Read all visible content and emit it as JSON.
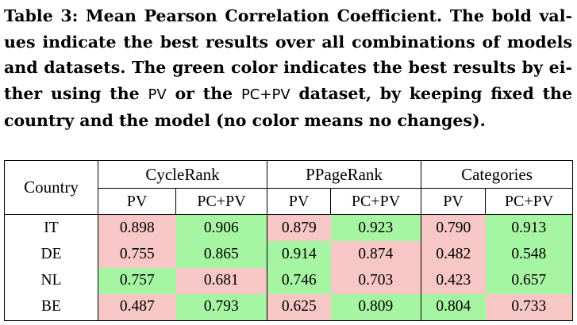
{
  "caption": {
    "line1": "Table 3: Mean Pearson Correlation Coefficient. The bold val-",
    "line2": "ues indicate the best results over all combinations of models",
    "line3": "and datasets. The green color indicates the best results by ei-",
    "line4_a": "ther using the ",
    "line4_pv": "PV",
    "line4_b": " or the ",
    "line4_pcpv": "PC+PV",
    "line4_c": " dataset, by keeping fixed the",
    "line5": "country and the model (no color means no changes)."
  },
  "table": {
    "country_header": "Country",
    "groups": [
      "CycleRank",
      "PPageRank",
      "Categories"
    ],
    "subcols": [
      "PV",
      "PC+PV",
      "PV",
      "PC+PV",
      "PV",
      "PC+PV"
    ],
    "rows": [
      {
        "country": "IT",
        "cells": [
          "0.898",
          "0.906",
          "0.879",
          "0.923",
          "0.790",
          "0.913"
        ]
      },
      {
        "country": "DE",
        "cells": [
          "0.755",
          "0.865",
          "0.914",
          "0.874",
          "0.482",
          "0.548"
        ]
      },
      {
        "country": "NL",
        "cells": [
          "0.757",
          "0.681",
          "0.746",
          "0.703",
          "0.423",
          "0.657"
        ]
      },
      {
        "country": "BE",
        "cells": [
          "0.487",
          "0.793",
          "0.625",
          "0.809",
          "0.804",
          "0.733"
        ]
      }
    ],
    "colors": {
      "green": "#a6f5a3",
      "red": "#f6c7c5"
    }
  }
}
